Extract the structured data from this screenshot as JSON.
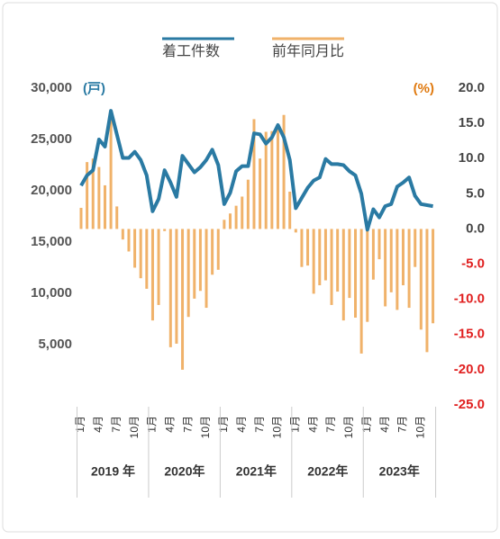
{
  "chart_data": {
    "type": "bar-line",
    "units_left": "(戸)",
    "units_right": "(%)",
    "categories": [
      "1月",
      null,
      null,
      "4月",
      null,
      null,
      "7月",
      null,
      null,
      "10月",
      null,
      null,
      "1月",
      null,
      null,
      "4月",
      null,
      null,
      "7月",
      null,
      null,
      "10月",
      null,
      null,
      "1月",
      null,
      null,
      "4月",
      null,
      null,
      "7月",
      null,
      null,
      "10月",
      null,
      null,
      "1月",
      null,
      null,
      "4月",
      null,
      null,
      "7月",
      null,
      null,
      "10月",
      null,
      null,
      "1月",
      null,
      null,
      "4月",
      null,
      null,
      "7月",
      null,
      null,
      "10月",
      null,
      null
    ],
    "years": [
      "2019 年",
      "2020年",
      "2021年",
      "2022年",
      "2023年"
    ],
    "series": [
      {
        "name": "着工件数",
        "color": "#2a7aa3",
        "type": "line",
        "values": [
          20500,
          21500,
          22000,
          25000,
          24300,
          27800,
          25500,
          23200,
          23200,
          23800,
          23000,
          21500,
          18000,
          19200,
          22000,
          20800,
          19400,
          23400,
          22600,
          21800,
          22300,
          23000,
          24000,
          22500,
          18700,
          19800,
          21900,
          22400,
          22400,
          25600,
          25500,
          24600,
          25200,
          26400,
          25200,
          23000,
          18300,
          19300,
          20300,
          21000,
          21300,
          23100,
          22600,
          22600,
          22500,
          21900,
          21500,
          19700,
          16200,
          18200,
          17400,
          18500,
          18700,
          20400,
          20800,
          21300,
          19500,
          18700,
          18600,
          18500
        ]
      },
      {
        "name": "前年同月比",
        "color": "#f0b26a",
        "type": "bar",
        "axis": "y2",
        "values": [
          3.0,
          9.5,
          10.0,
          8.8,
          6.2,
          16.0,
          3.2,
          -1.5,
          -3.2,
          -5.5,
          -7.0,
          -8.5,
          -13.0,
          -10.8,
          -0.3,
          -16.8,
          -16.3,
          -20.0,
          -12.5,
          -9.9,
          -8.8,
          -11.2,
          -6.5,
          -5.8,
          1.3,
          2.2,
          3.3,
          4.6,
          7.0,
          15.6,
          10.0,
          13.8,
          13.9,
          14.4,
          16.2,
          5.3,
          -0.5,
          -5.4,
          -5.2,
          -9.2,
          -8.0,
          -7.3,
          -10.8,
          -8.9,
          -13.0,
          -9.8,
          -12.6,
          -17.7,
          -13.2,
          -7.2,
          -4.3,
          -11.0,
          -9.0,
          -11.5,
          -8.0,
          -11.2,
          -5.4,
          -14.3,
          -17.5,
          -13.4
        ]
      }
    ],
    "ylim": [
      0,
      30000
    ],
    "yticks": [
      {
        "value": 5000,
        "label": "5,000"
      },
      {
        "value": 10000,
        "label": "10,000"
      },
      {
        "value": 15000,
        "label": "15,000"
      },
      {
        "value": 20000,
        "label": "20,000"
      },
      {
        "value": 25000,
        "label": "25,000"
      },
      {
        "value": 30000,
        "label": "30,000"
      }
    ],
    "y2lim": [
      -25,
      20
    ],
    "y2ticks": [
      {
        "value": 20,
        "label": "20.0"
      },
      {
        "value": 15,
        "label": "15.0"
      },
      {
        "value": 10,
        "label": "10.0"
      },
      {
        "value": 5,
        "label": "5.0"
      },
      {
        "value": 0,
        "label": "0.0"
      },
      {
        "value": -5,
        "label": "-5.0"
      },
      {
        "value": -10,
        "label": "-10.0"
      },
      {
        "value": -15,
        "label": "-15.0"
      },
      {
        "value": -20,
        "label": "-20.0"
      },
      {
        "value": -25,
        "label": "-25.0"
      }
    ],
    "y2tick_color": "#444",
    "y2tick_negative_color": "#e02020",
    "units_right_color": "#e07a10",
    "units_left_color": "#2a7aa3"
  }
}
